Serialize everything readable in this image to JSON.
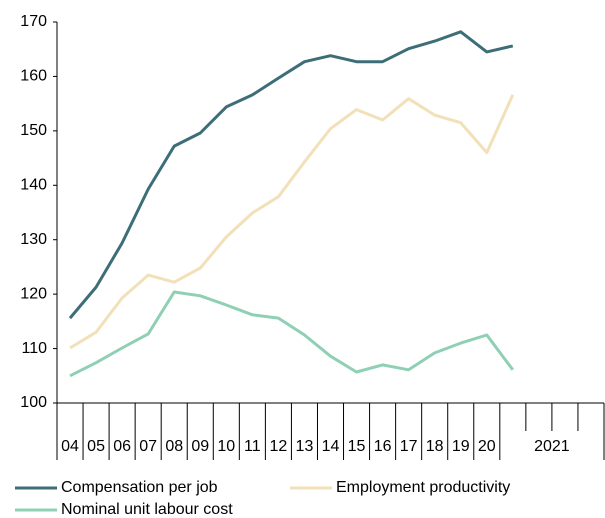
{
  "chart_data": {
    "type": "line",
    "categories": [
      "04",
      "05",
      "06",
      "07",
      "08",
      "09",
      "10",
      "11",
      "12",
      "13",
      "14",
      "15",
      "16",
      "17",
      "18",
      "19",
      "20",
      null,
      null,
      null,
      null
    ],
    "group_label": "2021",
    "series": [
      {
        "name": "Compensation per job",
        "color": "#3d6e78",
        "values": [
          115.6,
          121.3,
          129.4,
          139.3,
          147.2,
          149.6,
          154.4,
          156.6,
          159.7,
          162.7,
          163.8,
          162.7,
          162.7,
          165.1,
          166.5,
          168.2,
          164.5,
          165.6,
          null,
          null,
          null
        ]
      },
      {
        "name": "Employment productivity",
        "color": "#f2e0b8",
        "values": [
          110.1,
          113,
          119.3,
          123.5,
          122.2,
          124.8,
          130.5,
          134.9,
          137.9,
          144.3,
          150.4,
          153.9,
          152,
          155.9,
          152.9,
          151.5,
          146,
          156.6,
          null,
          null,
          null
        ]
      },
      {
        "name": "Nominal unit labour cost",
        "color": "#8fd0b4",
        "values": [
          105,
          107.4,
          110.1,
          112.7,
          120.4,
          119.7,
          118,
          116.2,
          115.6,
          112.5,
          108.6,
          105.7,
          107,
          106.1,
          109.2,
          111,
          112.5,
          106.1,
          null,
          null,
          null
        ]
      }
    ],
    "ylim": [
      100,
      170
    ],
    "yticks": [
      100,
      110,
      120,
      130,
      140,
      150,
      160,
      170
    ],
    "grid": false
  }
}
